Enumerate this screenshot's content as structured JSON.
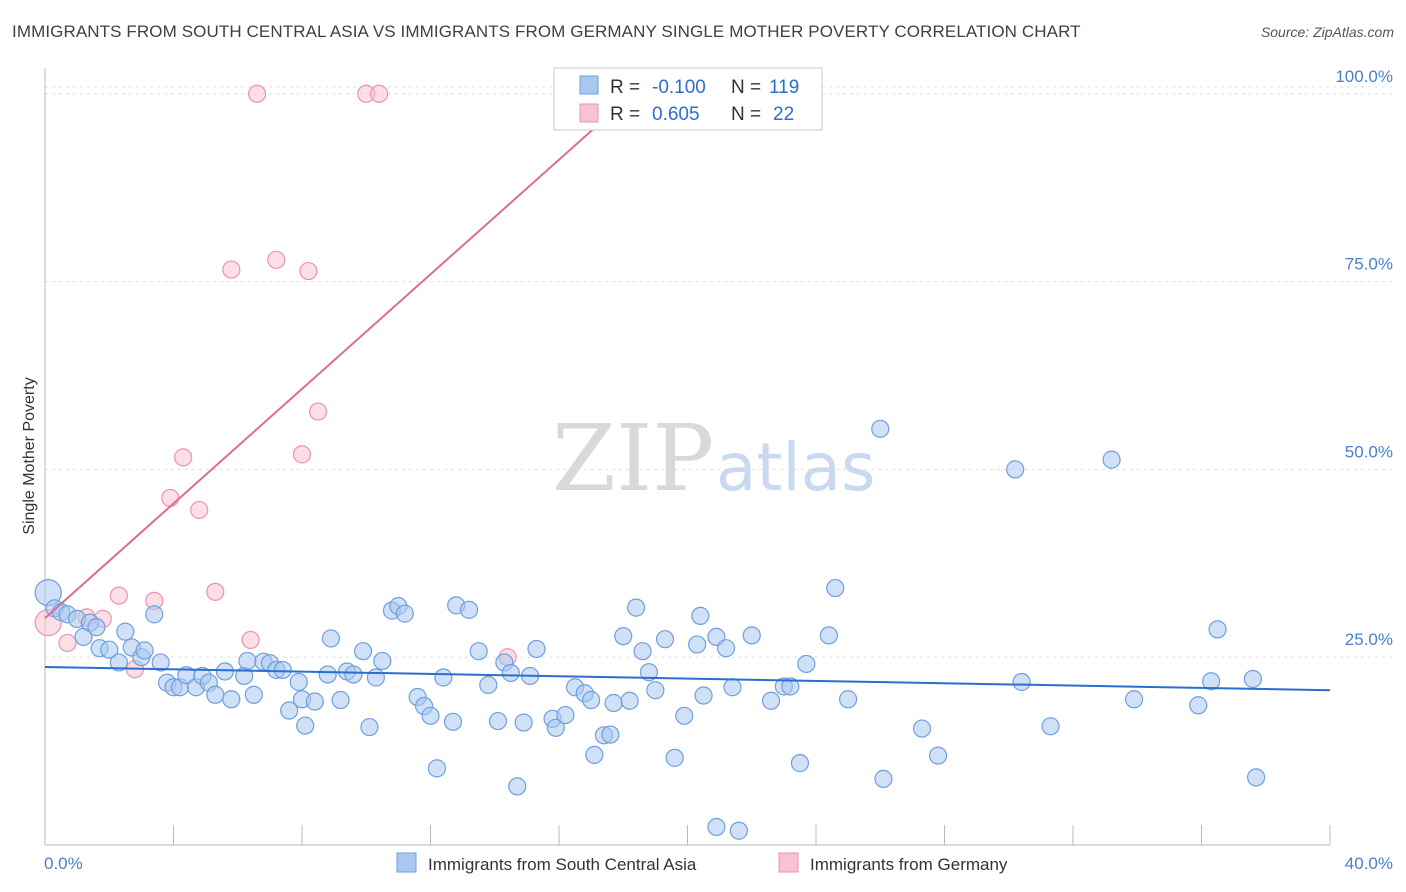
{
  "title": "IMMIGRANTS FROM SOUTH CENTRAL ASIA VS IMMIGRANTS FROM GERMANY SINGLE MOTHER POVERTY CORRELATION CHART",
  "source": "Source: ZipAtlas.com",
  "watermark": {
    "zip": "ZIP",
    "atlas": "atlas"
  },
  "colors": {
    "blue_fill": "#a9c8f0",
    "blue_stroke": "#6f9fdc",
    "blue_line": "#2a6ecf",
    "pink_fill": "#f7c2d2",
    "pink_stroke": "#ec93b0",
    "pink_line": "#e06a93",
    "tick_label": "#4a7fcc",
    "grid": "#dddddd"
  },
  "stats": [
    {
      "r_label": "R =",
      "r": "-0.100",
      "n_label": "N =",
      "n": "119",
      "color": "blue"
    },
    {
      "r_label": "R =",
      "r": "0.605",
      "n_label": "N =",
      "n": "22",
      "color": "pink"
    }
  ],
  "chart_data": {
    "type": "scatter",
    "title": "IMMIGRANTS FROM SOUTH CENTRAL ASIA VS IMMIGRANTS FROM GERMANY SINGLE MOTHER POVERTY CORRELATION CHART",
    "xlabel": "",
    "ylabel": "Single Mother Poverty",
    "xlim": [
      0,
      40
    ],
    "ylim": [
      0,
      102.5
    ],
    "x_tick_labels": [
      "0.0%",
      "40.0%"
    ],
    "y_ticks": [
      25,
      50,
      75,
      100
    ],
    "y_tick_labels": [
      "25.0%",
      "50.0%",
      "75.0%",
      "100.0%"
    ],
    "grid": true,
    "legend_position": "bottom",
    "series": [
      {
        "name": "Immigrants from South Central Asia",
        "color": "blue",
        "trend": {
          "x": [
            0,
            40
          ],
          "y": [
            23.7,
            20.6
          ]
        },
        "points": [
          [
            0.1,
            33.6
          ],
          [
            0.3,
            31.5
          ],
          [
            0.5,
            31.0
          ],
          [
            0.7,
            30.7
          ],
          [
            1.0,
            30.1
          ],
          [
            1.2,
            27.7
          ],
          [
            1.4,
            29.6
          ],
          [
            1.6,
            29.0
          ],
          [
            1.7,
            26.2
          ],
          [
            2.0,
            26.0
          ],
          [
            2.3,
            24.3
          ],
          [
            2.5,
            28.4
          ],
          [
            2.7,
            26.3
          ],
          [
            3.0,
            25.0
          ],
          [
            3.1,
            25.9
          ],
          [
            3.4,
            30.7
          ],
          [
            3.6,
            24.3
          ],
          [
            3.8,
            21.6
          ],
          [
            4.0,
            21.0
          ],
          [
            4.2,
            21.0
          ],
          [
            4.4,
            22.6
          ],
          [
            4.7,
            21.0
          ],
          [
            4.9,
            22.5
          ],
          [
            5.1,
            21.6
          ],
          [
            5.3,
            20.0
          ],
          [
            5.6,
            23.1
          ],
          [
            5.8,
            19.4
          ],
          [
            6.2,
            22.5
          ],
          [
            6.3,
            24.5
          ],
          [
            6.5,
            20.0
          ],
          [
            6.8,
            24.4
          ],
          [
            7.0,
            24.2
          ],
          [
            7.2,
            23.3
          ],
          [
            7.4,
            23.3
          ],
          [
            7.6,
            17.9
          ],
          [
            7.9,
            21.7
          ],
          [
            8.0,
            19.4
          ],
          [
            8.1,
            15.9
          ],
          [
            8.4,
            19.1
          ],
          [
            8.8,
            22.7
          ],
          [
            8.9,
            27.5
          ],
          [
            9.2,
            19.3
          ],
          [
            9.4,
            23.1
          ],
          [
            9.6,
            22.7
          ],
          [
            9.9,
            25.8
          ],
          [
            10.1,
            15.7
          ],
          [
            10.3,
            22.3
          ],
          [
            10.5,
            24.5
          ],
          [
            10.8,
            31.2
          ],
          [
            11.0,
            31.8
          ],
          [
            11.2,
            30.8
          ],
          [
            11.6,
            19.7
          ],
          [
            11.8,
            18.5
          ],
          [
            12.0,
            17.2
          ],
          [
            12.2,
            10.2
          ],
          [
            12.4,
            22.3
          ],
          [
            12.7,
            16.4
          ],
          [
            12.8,
            31.9
          ],
          [
            13.2,
            31.3
          ],
          [
            13.5,
            25.8
          ],
          [
            13.8,
            21.3
          ],
          [
            14.1,
            16.5
          ],
          [
            14.3,
            24.3
          ],
          [
            14.5,
            22.9
          ],
          [
            14.7,
            7.8
          ],
          [
            14.9,
            16.3
          ],
          [
            15.1,
            22.5
          ],
          [
            15.3,
            26.1
          ],
          [
            15.8,
            16.8
          ],
          [
            15.9,
            15.6
          ],
          [
            16.2,
            17.3
          ],
          [
            16.5,
            21.0
          ],
          [
            16.8,
            20.2
          ],
          [
            17.0,
            19.3
          ],
          [
            17.1,
            12.0
          ],
          [
            17.4,
            14.6
          ],
          [
            17.6,
            14.7
          ],
          [
            17.7,
            18.9
          ],
          [
            18.0,
            27.8
          ],
          [
            18.2,
            19.2
          ],
          [
            18.4,
            31.6
          ],
          [
            18.6,
            25.8
          ],
          [
            18.8,
            23.0
          ],
          [
            19.0,
            20.6
          ],
          [
            19.3,
            27.4
          ],
          [
            19.6,
            11.6
          ],
          [
            19.9,
            17.2
          ],
          [
            20.3,
            26.7
          ],
          [
            20.4,
            30.5
          ],
          [
            20.5,
            19.9
          ],
          [
            20.9,
            27.7
          ],
          [
            20.9,
            2.4
          ],
          [
            21.2,
            26.2
          ],
          [
            21.4,
            21.0
          ],
          [
            21.6,
            1.9
          ],
          [
            22.0,
            27.9
          ],
          [
            22.6,
            19.2
          ],
          [
            23.0,
            21.1
          ],
          [
            23.2,
            21.1
          ],
          [
            23.5,
            10.9
          ],
          [
            23.7,
            24.1
          ],
          [
            24.4,
            27.9
          ],
          [
            24.6,
            34.2
          ],
          [
            25.0,
            19.4
          ],
          [
            26.0,
            55.4
          ],
          [
            26.1,
            8.8
          ],
          [
            27.3,
            15.5
          ],
          [
            27.8,
            11.9
          ],
          [
            30.2,
            50.0
          ],
          [
            30.4,
            21.7
          ],
          [
            31.3,
            15.8
          ],
          [
            33.2,
            51.3
          ],
          [
            33.9,
            19.4
          ],
          [
            35.9,
            18.6
          ],
          [
            36.3,
            21.8
          ],
          [
            36.5,
            28.7
          ],
          [
            37.6,
            22.1
          ],
          [
            37.7,
            9.0
          ]
        ]
      },
      {
        "name": "Immigrants from Germany",
        "color": "pink",
        "trend": {
          "x": [
            0,
            18.3
          ],
          "y": [
            30.2,
            100.0
          ]
        },
        "points": [
          [
            0.1,
            29.6
          ],
          [
            0.7,
            26.9
          ],
          [
            1.3,
            30.3
          ],
          [
            1.8,
            30.1
          ],
          [
            2.3,
            33.2
          ],
          [
            2.8,
            23.4
          ],
          [
            3.4,
            32.5
          ],
          [
            3.9,
            46.2
          ],
          [
            4.3,
            51.6
          ],
          [
            4.8,
            44.6
          ],
          [
            5.3,
            33.7
          ],
          [
            5.8,
            76.6
          ],
          [
            6.4,
            27.3
          ],
          [
            6.6,
            100.0
          ],
          [
            7.2,
            77.9
          ],
          [
            8.0,
            52.0
          ],
          [
            8.2,
            76.4
          ],
          [
            8.5,
            57.7
          ],
          [
            10.0,
            100.0
          ],
          [
            10.4,
            100.0
          ],
          [
            14.4,
            25.0
          ],
          [
            18.3,
            100.0
          ]
        ]
      }
    ]
  },
  "legend": [
    {
      "label": "Immigrants from South Central Asia",
      "color": "blue"
    },
    {
      "label": "Immigrants from Germany",
      "color": "pink"
    }
  ]
}
